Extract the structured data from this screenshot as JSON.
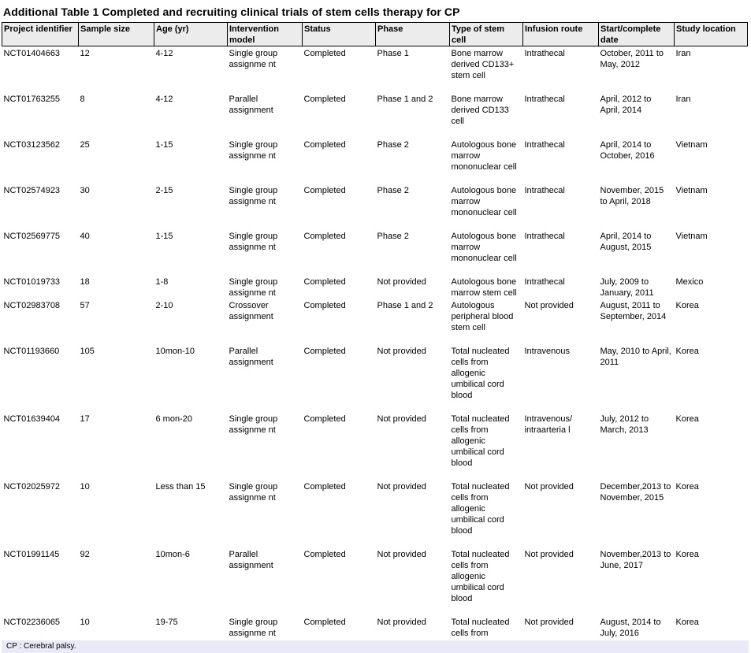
{
  "title": "Additional Table 1 Completed and recruiting clinical trials of stem cells therapy for CP",
  "footnote": "CP : Cerebral palsy.",
  "colors": {
    "header_bg": "#ececec",
    "footnote_bg": "#e9e9f8",
    "border": "#000000",
    "text": "#000000",
    "page_bg": "#ffffff"
  },
  "table": {
    "columns": [
      "Project identifier",
      "Sample size",
      "Age (yr)",
      "Intervention model",
      "Status",
      "Phase",
      "Type of stem cell",
      "Infusion route",
      "Start/complete date",
      "Study location"
    ],
    "rows": [
      [
        "NCT01404663",
        "12",
        "4-12",
        "Single group assignme nt",
        "Completed",
        "Phase 1",
        "Bone marrow derived CD133+ stem cell",
        "Intrathecal",
        "October, 2011 to May, 2012",
        "Iran"
      ],
      [
        "NCT01763255",
        "8",
        "4-12",
        "Parallel assignment",
        "Completed",
        "Phase 1 and 2",
        "Bone marrow derived CD133 cell",
        "Intrathecal",
        "April, 2012 to April, 2014",
        "Iran"
      ],
      [
        "NCT03123562",
        "25",
        "1-15",
        "Single group assignme nt",
        "Completed",
        "Phase 2",
        "Autologous bone marrow mononuclear cell",
        "Intrathecal",
        "April, 2014 to October, 2016",
        "Vietnam"
      ],
      [
        "NCT02574923",
        "30",
        "2-15",
        "Single group assignme nt",
        "Completed",
        "Phase 2",
        "Autologous bone marrow mononuclear cell",
        "Intrathecal",
        "November, 2015 to April, 2018",
        "Vietnam"
      ],
      [
        "NCT02569775",
        "40",
        "1-15",
        "Single group assignme nt",
        "Completed",
        "Phase 2",
        "Autologous bone marrow mononuclear cell",
        "Intrathecal",
        "April, 2014 to August, 2015",
        "Vietnam"
      ],
      [
        "NCT01019733",
        "18",
        "1-8",
        "Single group assignme nt",
        "Completed",
        "Not provided",
        "Autologous bone marrow stem cell",
        "Intrathecal",
        "July, 2009 to January, 2011",
        "Mexico"
      ],
      [
        "NCT02983708",
        "57",
        "2-10",
        "Crossover assignment",
        "Completed",
        "Phase 1 and 2",
        "Autologous peripheral blood stem cell",
        "Not provided",
        "August, 2011 to September, 2014",
        "Korea"
      ],
      [
        "NCT01193660",
        "105",
        "10mon-10",
        "Parallel assignment",
        "Completed",
        "Not provided",
        "Total nucleated cells from allogenic umbilical cord blood",
        "Intravenous",
        "May, 2010 to April, 2011",
        "Korea"
      ],
      [
        "NCT01639404",
        "17",
        "6 mon-20",
        "Single group assignme nt",
        "Completed",
        "Not provided",
        "Total nucleated cells from allogenic umbilical cord blood",
        "Intravenous/ intraarteria l",
        "July, 2012 to March, 2013",
        "Korea"
      ],
      [
        "NCT02025972",
        "10",
        "Less than 15",
        "Single group assignme nt",
        "Completed",
        "Not provided",
        "Total nucleated cells from allogenic umbilical cord blood",
        "Not provided",
        "December,2013 to November, 2015",
        "Korea"
      ],
      [
        "NCT01991145",
        "92",
        "10mon-6",
        "Parallel assignment",
        "Completed",
        "Not provided",
        "Total nucleated cells from allogenic umbilical cord blood",
        "Not provided",
        "November,2013 to June, 2017",
        "Korea"
      ],
      [
        "NCT02236065",
        "10",
        "19-75",
        "Single group assignme nt",
        "Completed",
        "Not provided",
        "Total nucleated cells from",
        "Not provided",
        "August, 2014 to July, 2016",
        "Korea"
      ]
    ]
  }
}
